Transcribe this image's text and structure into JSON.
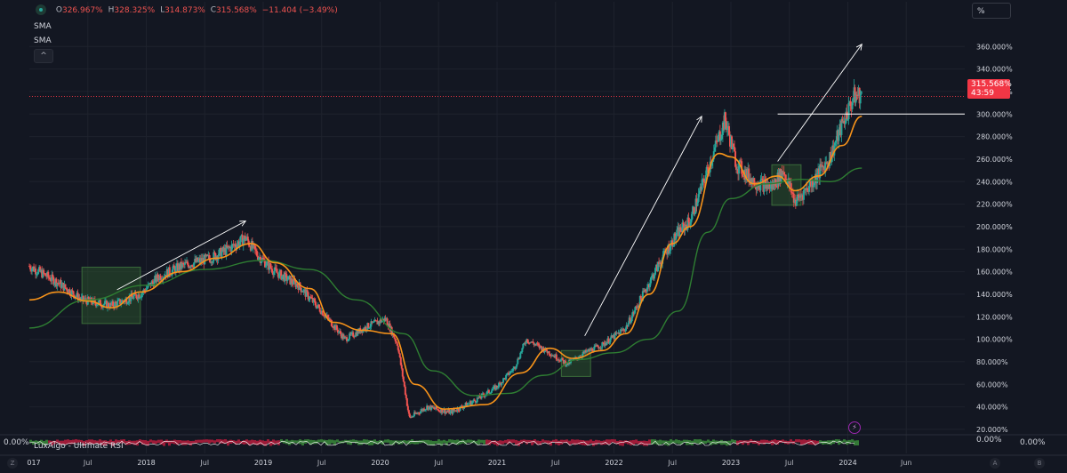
{
  "legend": {
    "o_label": "O",
    "o_value": "326.967%",
    "h_label": "H",
    "h_value": "328.325%",
    "l_label": "L",
    "l_value": "314.873%",
    "c_label": "C",
    "c_value": "315.568%",
    "change": "−11.404 (−3.49%)"
  },
  "indicators": [
    "SMA",
    "SMA"
  ],
  "collapse_glyph": "^",
  "scale_mode": "%",
  "price_tag": {
    "value": "315.568%",
    "countdown": "43:59"
  },
  "rsi": {
    "label": "LuxAlgo - Ultimate RSI",
    "zero_left": "0.00%",
    "zero_axis": "0.00%",
    "zero_right": "0.00%"
  },
  "corner_left": "Z",
  "corner_mid": "A",
  "corner_right": "B",
  "colors": {
    "background": "#131722",
    "grid": "#1e222d",
    "up": "#26a69a",
    "down": "#ef5350",
    "sma_fast": "#f7931a",
    "sma_slow": "#2e7d32",
    "annotation": "#ffffff",
    "box": "#2e5e2e"
  },
  "chart_data": {
    "type": "candlestick",
    "y_unit": "%",
    "y_ticks": [
      "360.000%",
      "340.000%",
      "320.000%",
      "300.000%",
      "280.000%",
      "260.000%",
      "240.000%",
      "220.000%",
      "200.000%",
      "180.000%",
      "160.000%",
      "140.000%",
      "120.000%",
      "100.000%",
      "80.000%",
      "60.000%",
      "40.000%",
      "20.000%"
    ],
    "y_tick_values": [
      360,
      340,
      320,
      300,
      280,
      260,
      240,
      220,
      200,
      180,
      160,
      140,
      120,
      100,
      80,
      60,
      40,
      20
    ],
    "ylim": [
      16,
      376
    ],
    "x_ticks": [
      "017",
      "Jul",
      "2018",
      "Jul",
      "2019",
      "Jul",
      "2020",
      "Jul",
      "2021",
      "Jul",
      "2022",
      "Jul",
      "2023",
      "Jul",
      "2024",
      "Jun"
    ],
    "x_tick_values": [
      2017.0,
      2017.5,
      2018.0,
      2018.5,
      2019.0,
      2019.5,
      2020.0,
      2020.5,
      2021.0,
      2021.5,
      2022.0,
      2022.5,
      2023.0,
      2023.5,
      2024.0,
      2024.5
    ],
    "xlim": [
      2017.0,
      2025.0
    ],
    "price_path": [
      [
        2017.0,
        165
      ],
      [
        2017.25,
        150
      ],
      [
        2017.45,
        135
      ],
      [
        2017.7,
        130
      ],
      [
        2017.95,
        140
      ],
      [
        2018.1,
        155
      ],
      [
        2018.3,
        165
      ],
      [
        2018.55,
        172
      ],
      [
        2018.7,
        180
      ],
      [
        2018.85,
        190
      ],
      [
        2018.95,
        175
      ],
      [
        2019.1,
        160
      ],
      [
        2019.3,
        148
      ],
      [
        2019.5,
        125
      ],
      [
        2019.7,
        100
      ],
      [
        2019.9,
        112
      ],
      [
        2020.05,
        118
      ],
      [
        2020.15,
        95
      ],
      [
        2020.25,
        30
      ],
      [
        2020.4,
        40
      ],
      [
        2020.6,
        35
      ],
      [
        2020.8,
        45
      ],
      [
        2021.0,
        58
      ],
      [
        2021.15,
        75
      ],
      [
        2021.25,
        100
      ],
      [
        2021.45,
        88
      ],
      [
        2021.6,
        78
      ],
      [
        2021.75,
        88
      ],
      [
        2021.9,
        95
      ],
      [
        2022.1,
        110
      ],
      [
        2022.25,
        140
      ],
      [
        2022.4,
        170
      ],
      [
        2022.55,
        195
      ],
      [
        2022.65,
        205
      ],
      [
        2022.8,
        250
      ],
      [
        2022.95,
        295
      ],
      [
        2023.05,
        255
      ],
      [
        2023.2,
        240
      ],
      [
        2023.35,
        235
      ],
      [
        2023.45,
        250
      ],
      [
        2023.55,
        222
      ],
      [
        2023.7,
        240
      ],
      [
        2023.85,
        262
      ],
      [
        2023.95,
        290
      ],
      [
        2024.05,
        315
      ],
      [
        2024.12,
        318
      ]
    ],
    "sma_fast": [
      [
        2017.0,
        135
      ],
      [
        2017.25,
        142
      ],
      [
        2017.5,
        134
      ],
      [
        2017.7,
        128
      ],
      [
        2017.95,
        142
      ],
      [
        2018.3,
        160
      ],
      [
        2018.6,
        172
      ],
      [
        2018.9,
        185
      ],
      [
        2019.1,
        168
      ],
      [
        2019.4,
        145
      ],
      [
        2019.6,
        115
      ],
      [
        2019.85,
        108
      ],
      [
        2020.1,
        105
      ],
      [
        2020.3,
        60
      ],
      [
        2020.55,
        38
      ],
      [
        2020.9,
        42
      ],
      [
        2021.2,
        70
      ],
      [
        2021.45,
        92
      ],
      [
        2021.65,
        83
      ],
      [
        2021.9,
        90
      ],
      [
        2022.1,
        105
      ],
      [
        2022.3,
        140
      ],
      [
        2022.5,
        185
      ],
      [
        2022.65,
        200
      ],
      [
        2022.9,
        265
      ],
      [
        2023.0,
        262
      ],
      [
        2023.2,
        238
      ],
      [
        2023.4,
        245
      ],
      [
        2023.55,
        232
      ],
      [
        2023.75,
        245
      ],
      [
        2023.95,
        272
      ],
      [
        2024.12,
        298
      ]
    ],
    "sma_slow": [
      [
        2017.0,
        110
      ],
      [
        2017.5,
        135
      ],
      [
        2018.0,
        148
      ],
      [
        2018.5,
        162
      ],
      [
        2019.0,
        170
      ],
      [
        2019.4,
        162
      ],
      [
        2019.8,
        135
      ],
      [
        2020.2,
        105
      ],
      [
        2020.45,
        72
      ],
      [
        2020.8,
        50
      ],
      [
        2021.1,
        52
      ],
      [
        2021.4,
        68
      ],
      [
        2021.7,
        82
      ],
      [
        2022.0,
        88
      ],
      [
        2022.3,
        100
      ],
      [
        2022.55,
        125
      ],
      [
        2022.8,
        195
      ],
      [
        2023.0,
        225
      ],
      [
        2023.3,
        238
      ],
      [
        2023.6,
        242
      ],
      [
        2023.85,
        240
      ],
      [
        2024.12,
        252
      ]
    ],
    "last_value": 315.568,
    "horizontal_line": 300,
    "trend_arrows": [
      {
        "from": [
          2017.75,
          144
        ],
        "to": [
          2018.85,
          205
        ]
      },
      {
        "from": [
          2021.75,
          103
        ],
        "to": [
          2022.75,
          298
        ]
      },
      {
        "from": [
          2023.4,
          258
        ],
        "to": [
          2024.12,
          362
        ]
      }
    ],
    "boxes": [
      {
        "x": [
          2017.45,
          2017.95
        ],
        "y": [
          114,
          164
        ]
      },
      {
        "x": [
          2021.55,
          2021.8
        ],
        "y": [
          67,
          90
        ]
      },
      {
        "x": [
          2023.35,
          2023.6
        ],
        "y": [
          219,
          255
        ]
      }
    ]
  }
}
